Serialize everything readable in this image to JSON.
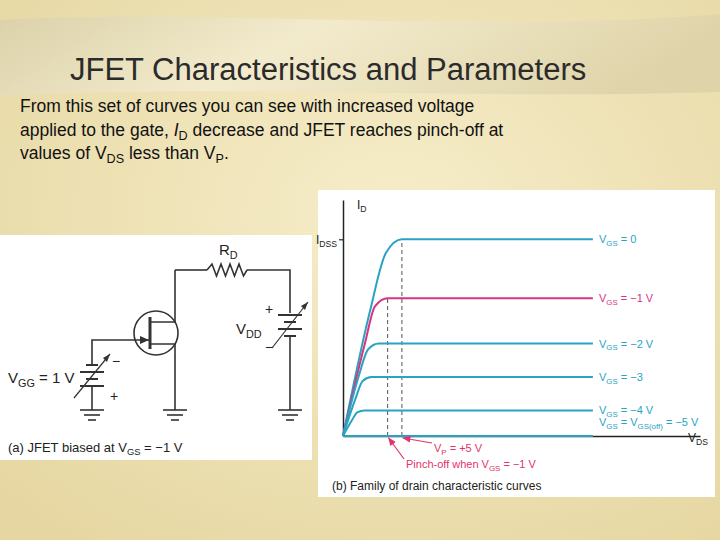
{
  "slide": {
    "title": "JFET Characteristics and Parameters",
    "text": [
      [
        "From this set of curves you can see with increased voltage"
      ],
      [
        "applied to the gate, ",
        {
          "italic": "I"
        },
        {
          "sub": "D"
        },
        " decrease and JFET reaches pinch-off at"
      ],
      [
        "values of V",
        {
          "sub": "DS"
        },
        " less than V",
        {
          "sub": "P"
        },
        "."
      ]
    ]
  },
  "circuit": {
    "labels": {
      "rd": [
        "R",
        {
          "sub": "D"
        }
      ],
      "vdd": [
        "V",
        {
          "sub": "DD"
        }
      ],
      "vdd_plus": [
        "+"
      ],
      "vdd_minus": [
        "−"
      ],
      "vgg": [
        "V",
        {
          "sub": "GG"
        },
        " = 1 V"
      ],
      "vgg_minus": [
        "−"
      ],
      "vgg_plus": [
        "+"
      ]
    },
    "caption": [
      "(a) JFET biased at V",
      {
        "sub": "GS"
      },
      " = −1 V"
    ]
  },
  "chart_data": {
    "type": "line",
    "caption": [
      "(b) Family of drain characteristic curves"
    ],
    "x_label": [
      "V",
      {
        "sub": "DS"
      }
    ],
    "y_label": [
      "I",
      {
        "sub": "D"
      }
    ],
    "xlim": [
      0,
      20
    ],
    "ylim": [
      0,
      12
    ],
    "xticks": [],
    "yticks": [
      {
        "value": 10,
        "label": [
          "I",
          {
            "sub": "DSS"
          }
        ]
      }
    ],
    "tick_labels": "y",
    "grid": false,
    "series": [
      {
        "name": [
          "V",
          {
            "sub": "GS"
          },
          " = 0"
        ],
        "color": "#2aa3c2",
        "x": [
          0,
          1.5,
          2.4,
          3.3,
          14
        ],
        "values": [
          0,
          6.3,
          9.3,
          10,
          10
        ]
      },
      {
        "name": [
          "V",
          {
            "sub": "GS"
          },
          " = −1 V"
        ],
        "color": "#d6357f",
        "x": [
          0,
          1.2,
          1.8,
          2.5,
          14
        ],
        "values": [
          0,
          4.6,
          6.6,
          7,
          7
        ]
      },
      {
        "name": [
          "V",
          {
            "sub": "GS"
          },
          " = −2 V"
        ],
        "color": "#2aa3c2",
        "x": [
          0,
          0.9,
          1.4,
          2.0,
          14
        ],
        "values": [
          0,
          3.1,
          4.4,
          4.7,
          4.7
        ]
      },
      {
        "name": [
          "V",
          {
            "sub": "GS"
          },
          " = −3"
        ],
        "color": "#2aa3c2",
        "x": [
          0,
          0.7,
          1.1,
          1.6,
          14
        ],
        "values": [
          0,
          1.9,
          2.8,
          3,
          3
        ]
      },
      {
        "name": [
          "V",
          {
            "sub": "GS"
          },
          " = −4 V"
        ],
        "color": "#2aa3c2",
        "x": [
          0,
          0.5,
          0.8,
          1.2,
          14
        ],
        "values": [
          0,
          0.8,
          1.2,
          1.3,
          1.3
        ]
      },
      {
        "name": [
          "V",
          {
            "sub": "GS"
          },
          " = V",
          {
            "sub": "GS(off)"
          },
          " = −5 V"
        ],
        "color": "#2aa3c2",
        "x": [
          0,
          14
        ],
        "values": [
          0,
          0
        ]
      }
    ],
    "annotations": [
      {
        "text": [
          "Pinch-off when V",
          {
            "sub": "GS"
          },
          " = −1 V"
        ],
        "x": 2.5,
        "y": 7
      },
      {
        "text": [
          "V",
          {
            "sub": "P"
          },
          " = +5 V"
        ],
        "x": 3.3,
        "y": 10
      }
    ]
  }
}
